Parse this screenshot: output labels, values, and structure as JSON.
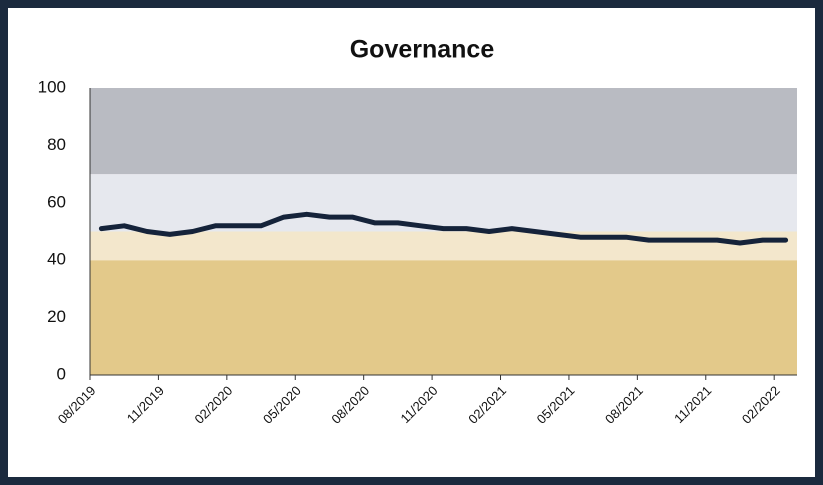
{
  "chart_data": {
    "type": "line",
    "title": "Governance",
    "categories": [
      "08/2019",
      null,
      null,
      "11/2019",
      null,
      null,
      "02/2020",
      null,
      null,
      "05/2020",
      null,
      null,
      "08/2020",
      null,
      null,
      "11/2020",
      null,
      null,
      "02/2021",
      null,
      null,
      "05/2021",
      null,
      null,
      "08/2021",
      null,
      null,
      "11/2021",
      null,
      null,
      "02/2022"
    ],
    "series": [
      {
        "color": "#15233a",
        "values": [
          51,
          52,
          50,
          49,
          50,
          52,
          52,
          52,
          55,
          56,
          55,
          55,
          53,
          53,
          52,
          51,
          51,
          50,
          51,
          50,
          49,
          48,
          48,
          48,
          47,
          47,
          47,
          47,
          46,
          47,
          47
        ]
      }
    ],
    "bands": [
      {
        "from": 0,
        "to": 40,
        "color": "#e3c98a"
      },
      {
        "from": 40,
        "to": 50,
        "color": "#f3e7cc"
      },
      {
        "from": 50,
        "to": 70,
        "color": "#e6e8ee"
      },
      {
        "from": 70,
        "to": 100,
        "color": "#b9bbc2"
      }
    ],
    "ylim": [
      0,
      100
    ],
    "yticks": [
      0,
      20,
      40,
      60,
      80,
      100
    ]
  }
}
